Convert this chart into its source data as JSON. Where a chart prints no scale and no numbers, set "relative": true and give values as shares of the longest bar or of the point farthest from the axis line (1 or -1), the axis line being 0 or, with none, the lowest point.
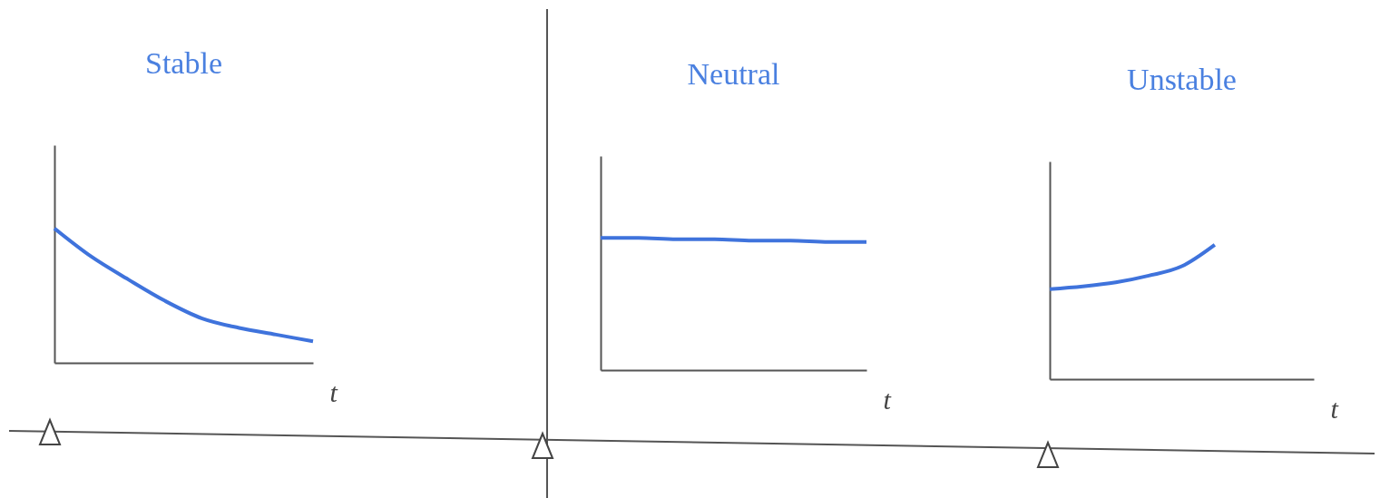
{
  "chart_data": [
    {
      "type": "line",
      "title": "Stable",
      "xlabel": "t",
      "relative": true,
      "grid": false,
      "line_style": "solid",
      "categories": [
        null,
        null,
        null,
        null,
        null,
        null,
        null,
        null
      ],
      "series": [
        {
          "color": "#3f73dc",
          "values": [
            1,
            0.79,
            0.62,
            0.46,
            0.33,
            0.26,
            0.21,
            0.16
          ]
        }
      ]
    },
    {
      "type": "line",
      "title": "Neutral",
      "xlabel": "t",
      "relative": true,
      "grid": false,
      "line_style": "solid",
      "categories": [
        null,
        null,
        null,
        null,
        null,
        null,
        null,
        null
      ],
      "series": [
        {
          "color": "#3f73dc",
          "values": [
            1,
            1,
            0.99,
            0.99,
            0.98,
            0.98,
            0.97,
            0.97
          ]
        }
      ]
    },
    {
      "type": "line",
      "title": "Unstable",
      "xlabel": "t",
      "relative": true,
      "grid": false,
      "line_style": "solid",
      "categories": [
        null,
        null,
        null,
        null,
        null,
        null,
        null,
        null,
        null
      ],
      "series": [
        {
          "color": "#3f73dc",
          "values": [
            0.67,
            0.69,
            0.72,
            0.77,
            0.84,
            1,
            null,
            null,
            null
          ]
        }
      ]
    }
  ]
}
